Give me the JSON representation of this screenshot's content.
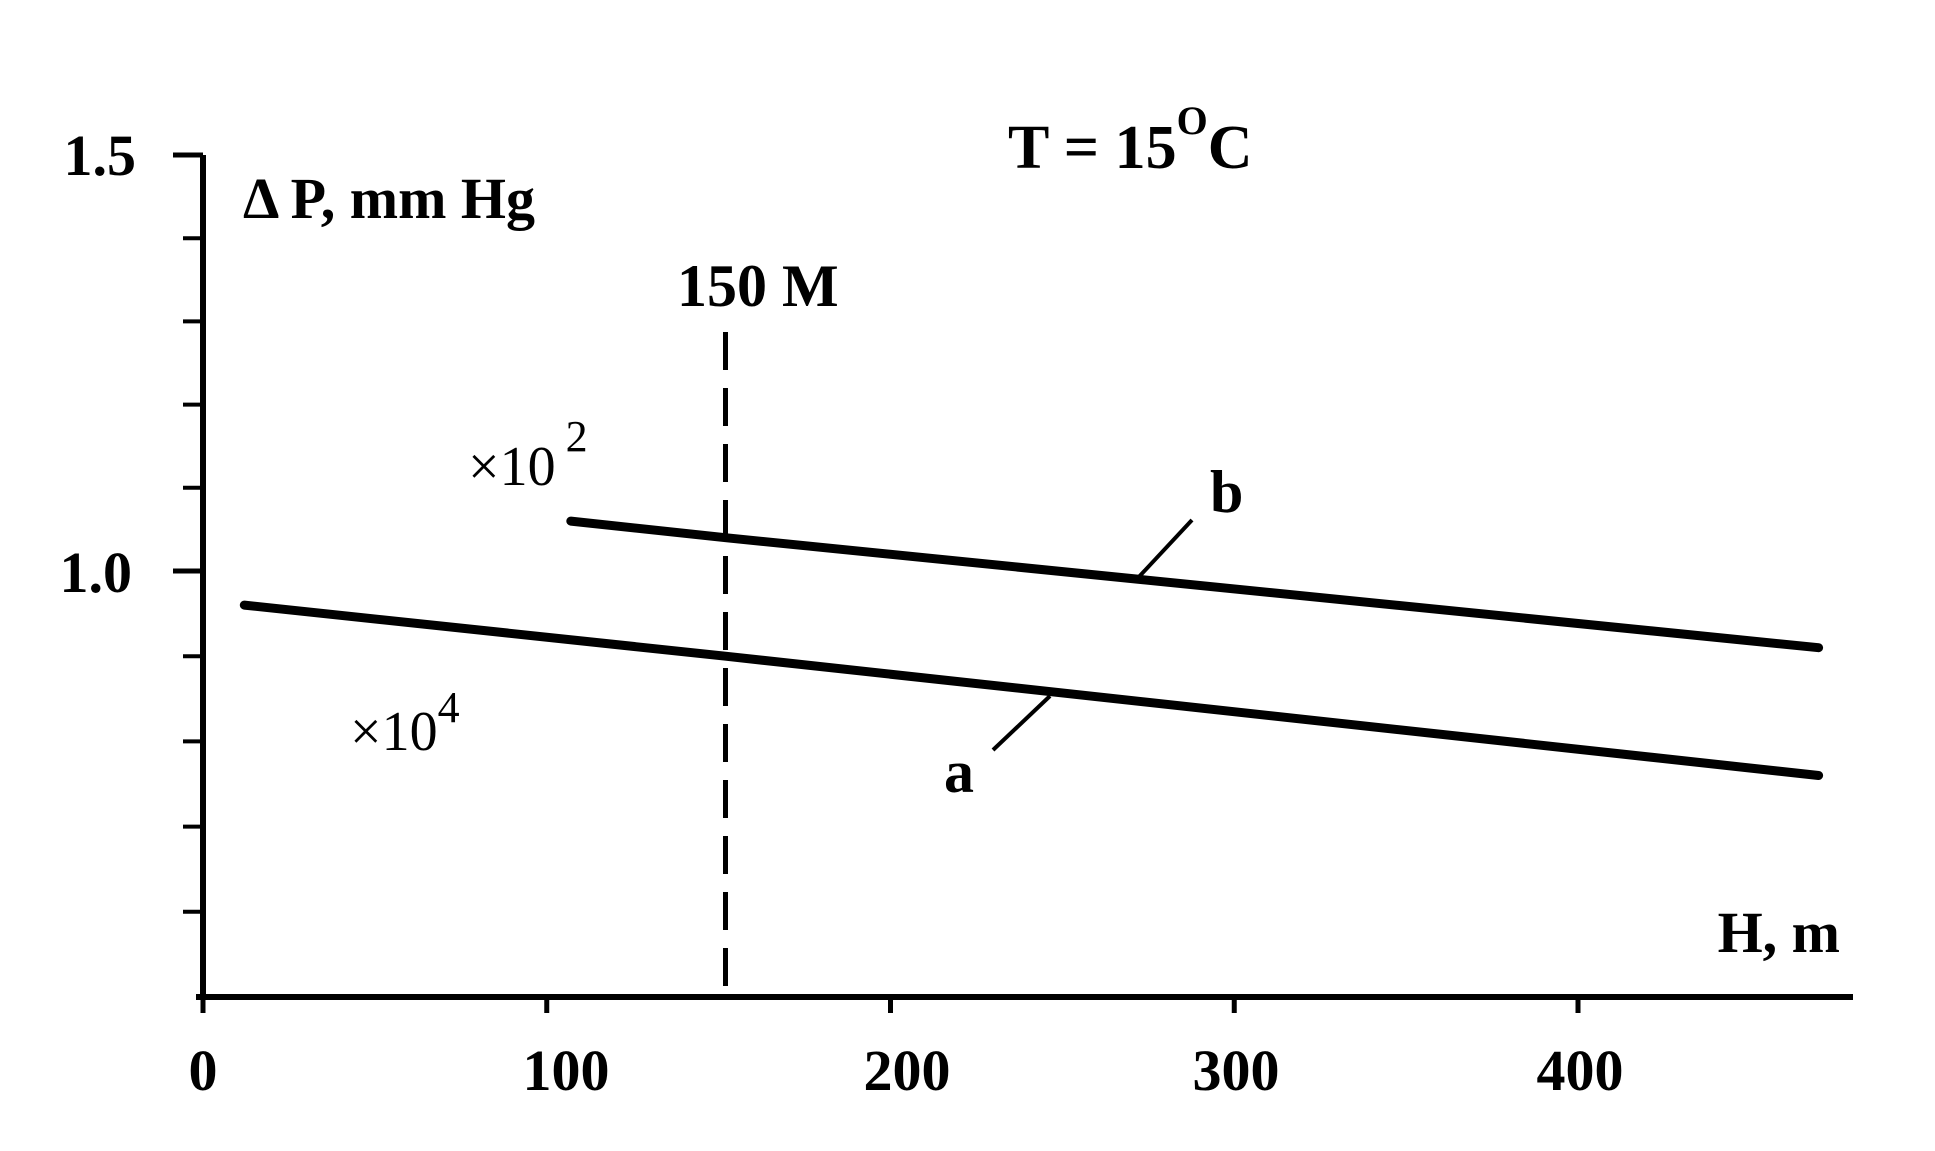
{
  "chart_data": {
    "type": "line",
    "title": "",
    "annotation_temperature": "T = 15",
    "annotation_temperature_sup": "O",
    "annotation_temperature_unit": "C",
    "xlabel": "H, m",
    "ylabel": "Δ P, mm Hg",
    "xlim": [
      0,
      480
    ],
    "ylim": [
      0.5,
      1.5
    ],
    "x_ticks": [
      0,
      100,
      200,
      300,
      400
    ],
    "x_tick_labels": [
      "0",
      "100",
      "200",
      "300",
      "400"
    ],
    "y_ticks_labeled": [
      1.0,
      1.5
    ],
    "y_tick_labels": [
      "1.0",
      "1.5"
    ],
    "y_minor_ticks": [
      0.6,
      0.7,
      0.8,
      0.9,
      1.1,
      1.2,
      1.3,
      1.4
    ],
    "vline": {
      "x": 152,
      "label": "150 M",
      "style": "dashed"
    },
    "series": [
      {
        "name": "a",
        "multiplier_base": "×10",
        "multiplier_exp": "4",
        "points": [
          [
            12,
            0.96
          ],
          [
            152,
            0.9
          ],
          [
            470,
            0.76
          ]
        ]
      },
      {
        "name": "b",
        "multiplier_base": "×10",
        "multiplier_exp": "2",
        "points": [
          [
            107,
            1.06
          ],
          [
            152,
            1.04
          ],
          [
            470,
            0.91
          ]
        ]
      }
    ],
    "grid": false,
    "legend": "none"
  }
}
